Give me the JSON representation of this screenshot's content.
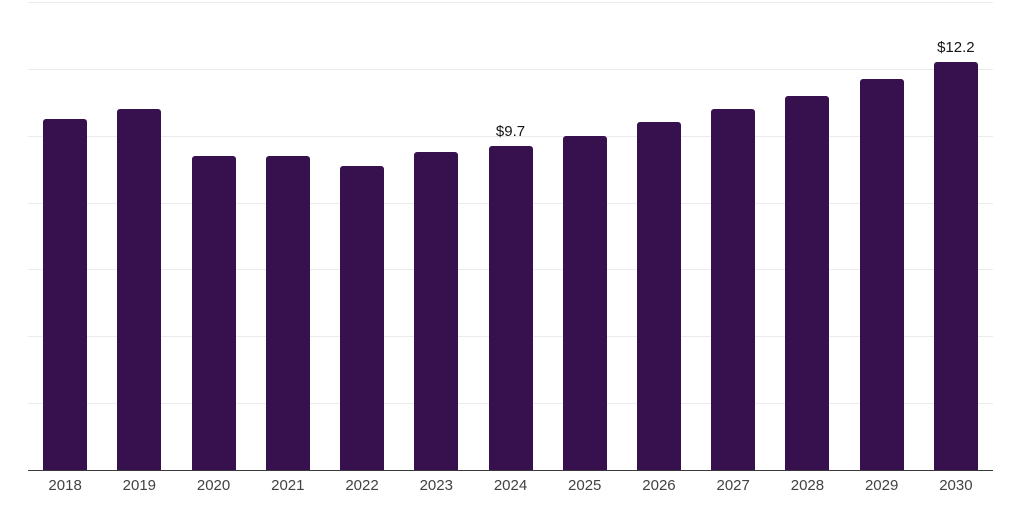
{
  "chart_data": {
    "type": "bar",
    "title": "",
    "xlabel": "",
    "ylabel": "",
    "categories": [
      "2018",
      "2019",
      "2020",
      "2021",
      "2022",
      "2023",
      "2024",
      "2025",
      "2026",
      "2027",
      "2028",
      "2029",
      "2030"
    ],
    "values": [
      10.5,
      10.8,
      9.4,
      9.4,
      9.1,
      9.5,
      9.7,
      10.0,
      10.4,
      10.8,
      11.2,
      11.7,
      12.2
    ],
    "data_labels": [
      null,
      null,
      null,
      null,
      null,
      null,
      "$9.7",
      null,
      null,
      null,
      null,
      null,
      "$12.2"
    ],
    "ylim": [
      0,
      14
    ],
    "gridline_step": 2,
    "grid": true,
    "legend": false,
    "colors": {
      "bar": "#36114d",
      "gridline": "#ebebeb",
      "axis_line": "#3a3a3a",
      "tick_label": "#424242",
      "data_label": "#141414",
      "background": "#ffffff"
    }
  }
}
